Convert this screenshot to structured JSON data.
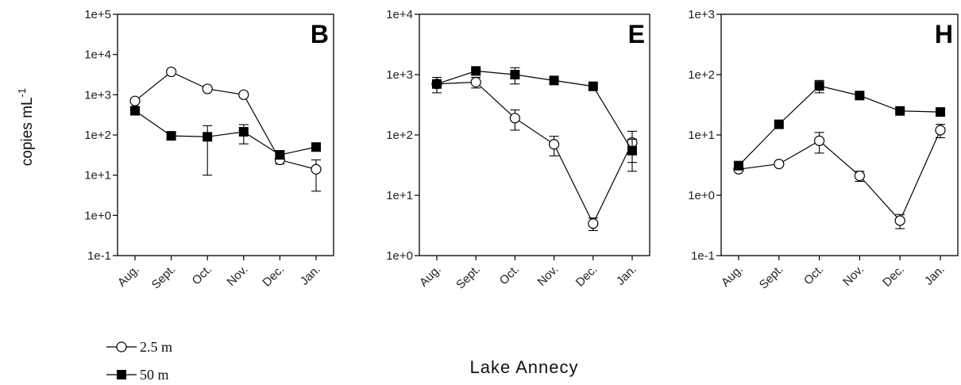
{
  "chart_data": [
    {
      "type": "line",
      "panel_label": "B",
      "y_scale": "log",
      "ylim": [
        0.1,
        100000
      ],
      "y_ticks": [
        "1e-1",
        "1e+0",
        "1e+1",
        "1e+2",
        "1e+3",
        "1e+4",
        "1e+5"
      ],
      "ylabel": "copies mL-1",
      "categories": [
        "Aug.",
        "Sept.",
        "Oct.",
        "Nov.",
        "Dec.",
        "Jan."
      ],
      "series": [
        {
          "name": "2.5 m",
          "marker": "open-circle",
          "values": [
            700,
            3700,
            1400,
            1000,
            24,
            14
          ],
          "error": [
            0,
            0,
            0,
            0,
            5,
            10
          ]
        },
        {
          "name": "50 m",
          "marker": "filled-square",
          "values": [
            400,
            95,
            90,
            120,
            32,
            50
          ],
          "error": [
            0,
            0,
            80,
            60,
            0,
            0
          ]
        }
      ]
    },
    {
      "type": "line",
      "panel_label": "E",
      "y_scale": "log",
      "ylim": [
        1,
        10000
      ],
      "y_ticks": [
        "1e+0",
        "1e+1",
        "1e+2",
        "1e+3",
        "1e+4"
      ],
      "categories": [
        "Aug.",
        "Sept.",
        "Oct.",
        "Nov.",
        "Dec.",
        "Jan."
      ],
      "series": [
        {
          "name": "2.5 m",
          "marker": "open-circle",
          "values": [
            700,
            750,
            190,
            70,
            3.4,
            75
          ],
          "error": [
            0,
            150,
            70,
            25,
            0.8,
            40
          ]
        },
        {
          "name": "50 m",
          "marker": "filled-square",
          "values": [
            700,
            1150,
            1000,
            800,
            640,
            55
          ],
          "error": [
            200,
            0,
            300,
            0,
            0,
            30
          ]
        }
      ]
    },
    {
      "type": "line",
      "panel_label": "H",
      "y_scale": "log",
      "ylim": [
        0.1,
        1000
      ],
      "y_ticks": [
        "1e-1",
        "1e+0",
        "1e+1",
        "1e+2",
        "1e+3"
      ],
      "categories": [
        "Aug.",
        "Sept.",
        "Oct.",
        "Nov.",
        "Dec.",
        "Jan."
      ],
      "series": [
        {
          "name": "2.5 m",
          "marker": "open-circle",
          "values": [
            2.7,
            3.3,
            8,
            2.1,
            0.38,
            12
          ],
          "error": [
            0,
            0,
            3,
            0.4,
            0.1,
            3
          ]
        },
        {
          "name": "50 m",
          "marker": "filled-square",
          "values": [
            3.1,
            15,
            65,
            45,
            25,
            24
          ],
          "error": [
            0,
            0,
            15,
            0,
            0,
            0
          ]
        }
      ]
    }
  ],
  "legend": [
    {
      "label": "2.5 m",
      "marker": "open-circle"
    },
    {
      "label": "50 m",
      "marker": "filled-square"
    }
  ],
  "xlabel": "Lake Annecy",
  "ylabel_main": "copies mL",
  "ylabel_sup": "-1"
}
